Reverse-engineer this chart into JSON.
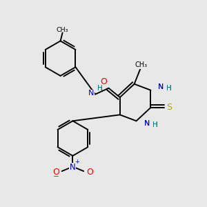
{
  "background_color": "#e8e8e8",
  "colors": {
    "C": "#000000",
    "N": "#0000cc",
    "O": "#ff0000",
    "S": "#aaaa00",
    "H": "#008080"
  },
  "figsize": [
    3.0,
    3.0
  ],
  "dpi": 100
}
